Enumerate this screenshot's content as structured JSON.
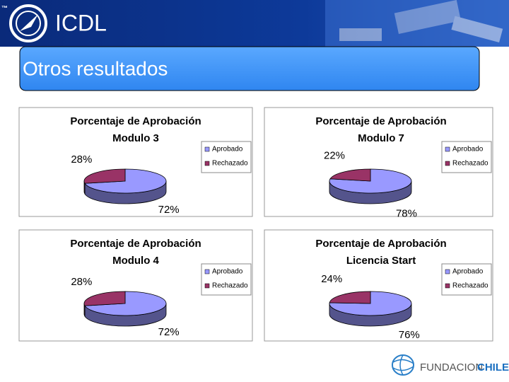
{
  "header": {
    "logo": "ICDL",
    "trademark": "™"
  },
  "slide_title": "Otros resultados",
  "footer": {
    "brand_1": "FUNDACION",
    "brand_2": "CHILE"
  },
  "chart_data": [
    {
      "type": "pie",
      "title": "Porcentaje de Aprobación",
      "subtitle": "Modulo 3",
      "categories": [
        "Aprobado",
        "Rechazado"
      ],
      "values": [
        72,
        28
      ],
      "value_labels": [
        "72%",
        "28%"
      ],
      "colors": [
        "#9999ff",
        "#993366"
      ],
      "legend": "right"
    },
    {
      "type": "pie",
      "title": "Porcentaje de Aprobación",
      "subtitle": "Modulo 7",
      "categories": [
        "Aprobado",
        "Rechazado"
      ],
      "values": [
        78,
        22
      ],
      "value_labels": [
        "78%",
        "22%"
      ],
      "colors": [
        "#9999ff",
        "#993366"
      ],
      "legend": "right"
    },
    {
      "type": "pie",
      "title": "Porcentaje de Aprobación",
      "subtitle": "Modulo 4",
      "categories": [
        "Aprobado",
        "Rechazado"
      ],
      "values": [
        72,
        28
      ],
      "value_labels": [
        "72%",
        "28%"
      ],
      "colors": [
        "#9999ff",
        "#993366"
      ],
      "legend": "right"
    },
    {
      "type": "pie",
      "title": "Porcentaje de Aprobación",
      "subtitle": "Licencia Start",
      "categories": [
        "Aprobado",
        "Rechazado"
      ],
      "values": [
        76,
        24
      ],
      "value_labels": [
        "76%",
        "24%"
      ],
      "colors": [
        "#9999ff",
        "#993366"
      ],
      "legend": "right"
    }
  ]
}
